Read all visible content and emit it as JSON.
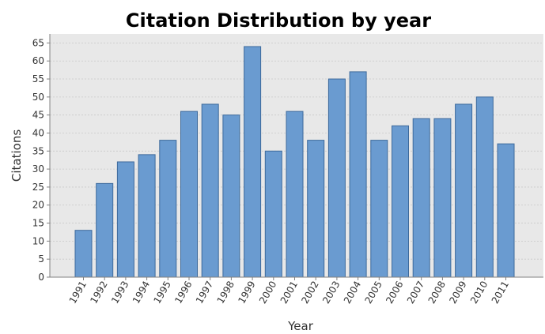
{
  "chart_data": {
    "type": "bar",
    "title": "Citation Distribution by year",
    "xlabel": "Year",
    "ylabel": "Citations",
    "categories": [
      "1991",
      "1992",
      "1993",
      "1994",
      "1995",
      "1996",
      "1997",
      "1998",
      "1999",
      "2000",
      "2001",
      "2002",
      "2003",
      "2004",
      "2005",
      "2006",
      "2007",
      "2008",
      "2009",
      "2010",
      "2011"
    ],
    "values": [
      13,
      26,
      32,
      34,
      38,
      46,
      48,
      45,
      64,
      35,
      46,
      38,
      55,
      57,
      38,
      42,
      44,
      44,
      48,
      50,
      37
    ],
    "ylim": [
      0,
      67.5
    ],
    "yticks": [
      0,
      5,
      10,
      15,
      20,
      25,
      30,
      35,
      40,
      45,
      50,
      55,
      60,
      65
    ],
    "grid": true,
    "legend": "none",
    "colors": {
      "bar_fill": "#6a9bd0",
      "bar_stroke": "#3d6a9c",
      "plot_background": "#e8e8e8",
      "gridline": "#c8c8c8"
    }
  }
}
